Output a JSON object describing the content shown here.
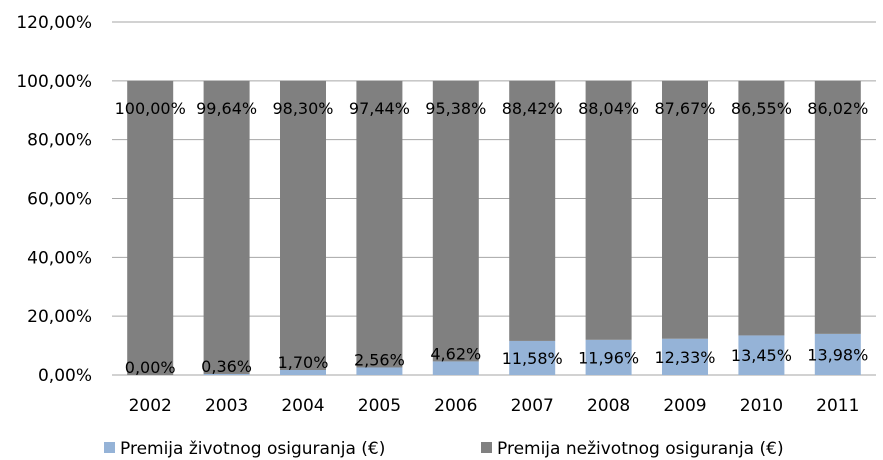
{
  "chart_data": {
    "type": "bar",
    "stacked": true,
    "categories": [
      "2002",
      "2003",
      "2004",
      "2005",
      "2006",
      "2007",
      "2008",
      "2009",
      "2010",
      "2011"
    ],
    "series": [
      {
        "name": "Premija životnog osiguranja (€)",
        "color": "#95b3d7",
        "values": [
          0.0,
          0.36,
          1.7,
          2.56,
          4.62,
          11.58,
          11.96,
          12.33,
          13.45,
          13.98
        ],
        "labels": [
          "0,00%",
          "0,36%",
          "1,70%",
          "2,56%",
          "4,62%",
          "11,58%",
          "11,96%",
          "12,33%",
          "13,45%",
          "13,98%"
        ]
      },
      {
        "name": "Premija neživotnog osiguranja (€)",
        "color": "#808080",
        "values": [
          100.0,
          99.64,
          98.3,
          97.44,
          95.38,
          88.42,
          88.04,
          87.67,
          86.55,
          86.02
        ],
        "labels": [
          "100,00%",
          "99,64%",
          "98,30%",
          "97,44%",
          "95,38%",
          "88,42%",
          "88,04%",
          "87,67%",
          "86,55%",
          "86,02%"
        ]
      }
    ],
    "ylim": [
      0,
      120
    ],
    "yticks": [
      {
        "value": 0,
        "label": "0,00%"
      },
      {
        "value": 20,
        "label": "20,00%"
      },
      {
        "value": 40,
        "label": "40,00%"
      },
      {
        "value": 60,
        "label": "60,00%"
      },
      {
        "value": 80,
        "label": "80,00%"
      },
      {
        "value": 100,
        "label": "100,00%"
      },
      {
        "value": 120,
        "label": "120,00%"
      }
    ],
    "grid": true,
    "gridColor": "#a6a6a6",
    "legend_position": "bottom",
    "title": "",
    "xlabel": "",
    "ylabel": ""
  }
}
